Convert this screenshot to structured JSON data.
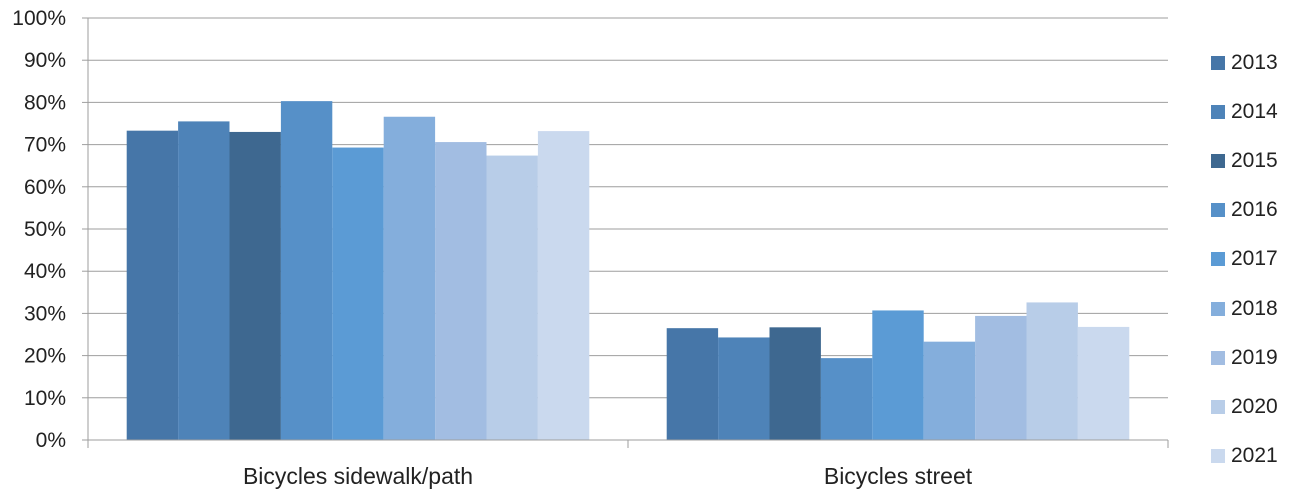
{
  "chart_data": {
    "type": "bar",
    "title": "",
    "xlabel": "",
    "ylabel": "",
    "categories": [
      "Bicycles sidewalk/path",
      "Bicycles street"
    ],
    "ylim": [
      0,
      100
    ],
    "yticks": [
      "0%",
      "10%",
      "20%",
      "30%",
      "40%",
      "50%",
      "60%",
      "70%",
      "80%",
      "90%",
      "100%"
    ],
    "grid": true,
    "legend_position": "right",
    "series": [
      {
        "name": "2013",
        "color": "#4676A8",
        "values": [
          73.3,
          26.5
        ]
      },
      {
        "name": "2014",
        "color": "#4E83B8",
        "values": [
          75.5,
          24.3
        ]
      },
      {
        "name": "2015",
        "color": "#3E6890",
        "values": [
          73.0,
          26.7
        ]
      },
      {
        "name": "2016",
        "color": "#5690C8",
        "values": [
          80.3,
          19.4
        ]
      },
      {
        "name": "2017",
        "color": "#5B9BD5",
        "values": [
          69.3,
          30.7
        ]
      },
      {
        "name": "2018",
        "color": "#84AEDC",
        "values": [
          76.6,
          23.3
        ]
      },
      {
        "name": "2019",
        "color": "#A2BDE2",
        "values": [
          70.6,
          29.4
        ]
      },
      {
        "name": "2020",
        "color": "#B8CDE8",
        "values": [
          67.4,
          32.6
        ]
      },
      {
        "name": "2021",
        "color": "#CAD9EE",
        "values": [
          73.2,
          26.8
        ]
      }
    ]
  }
}
